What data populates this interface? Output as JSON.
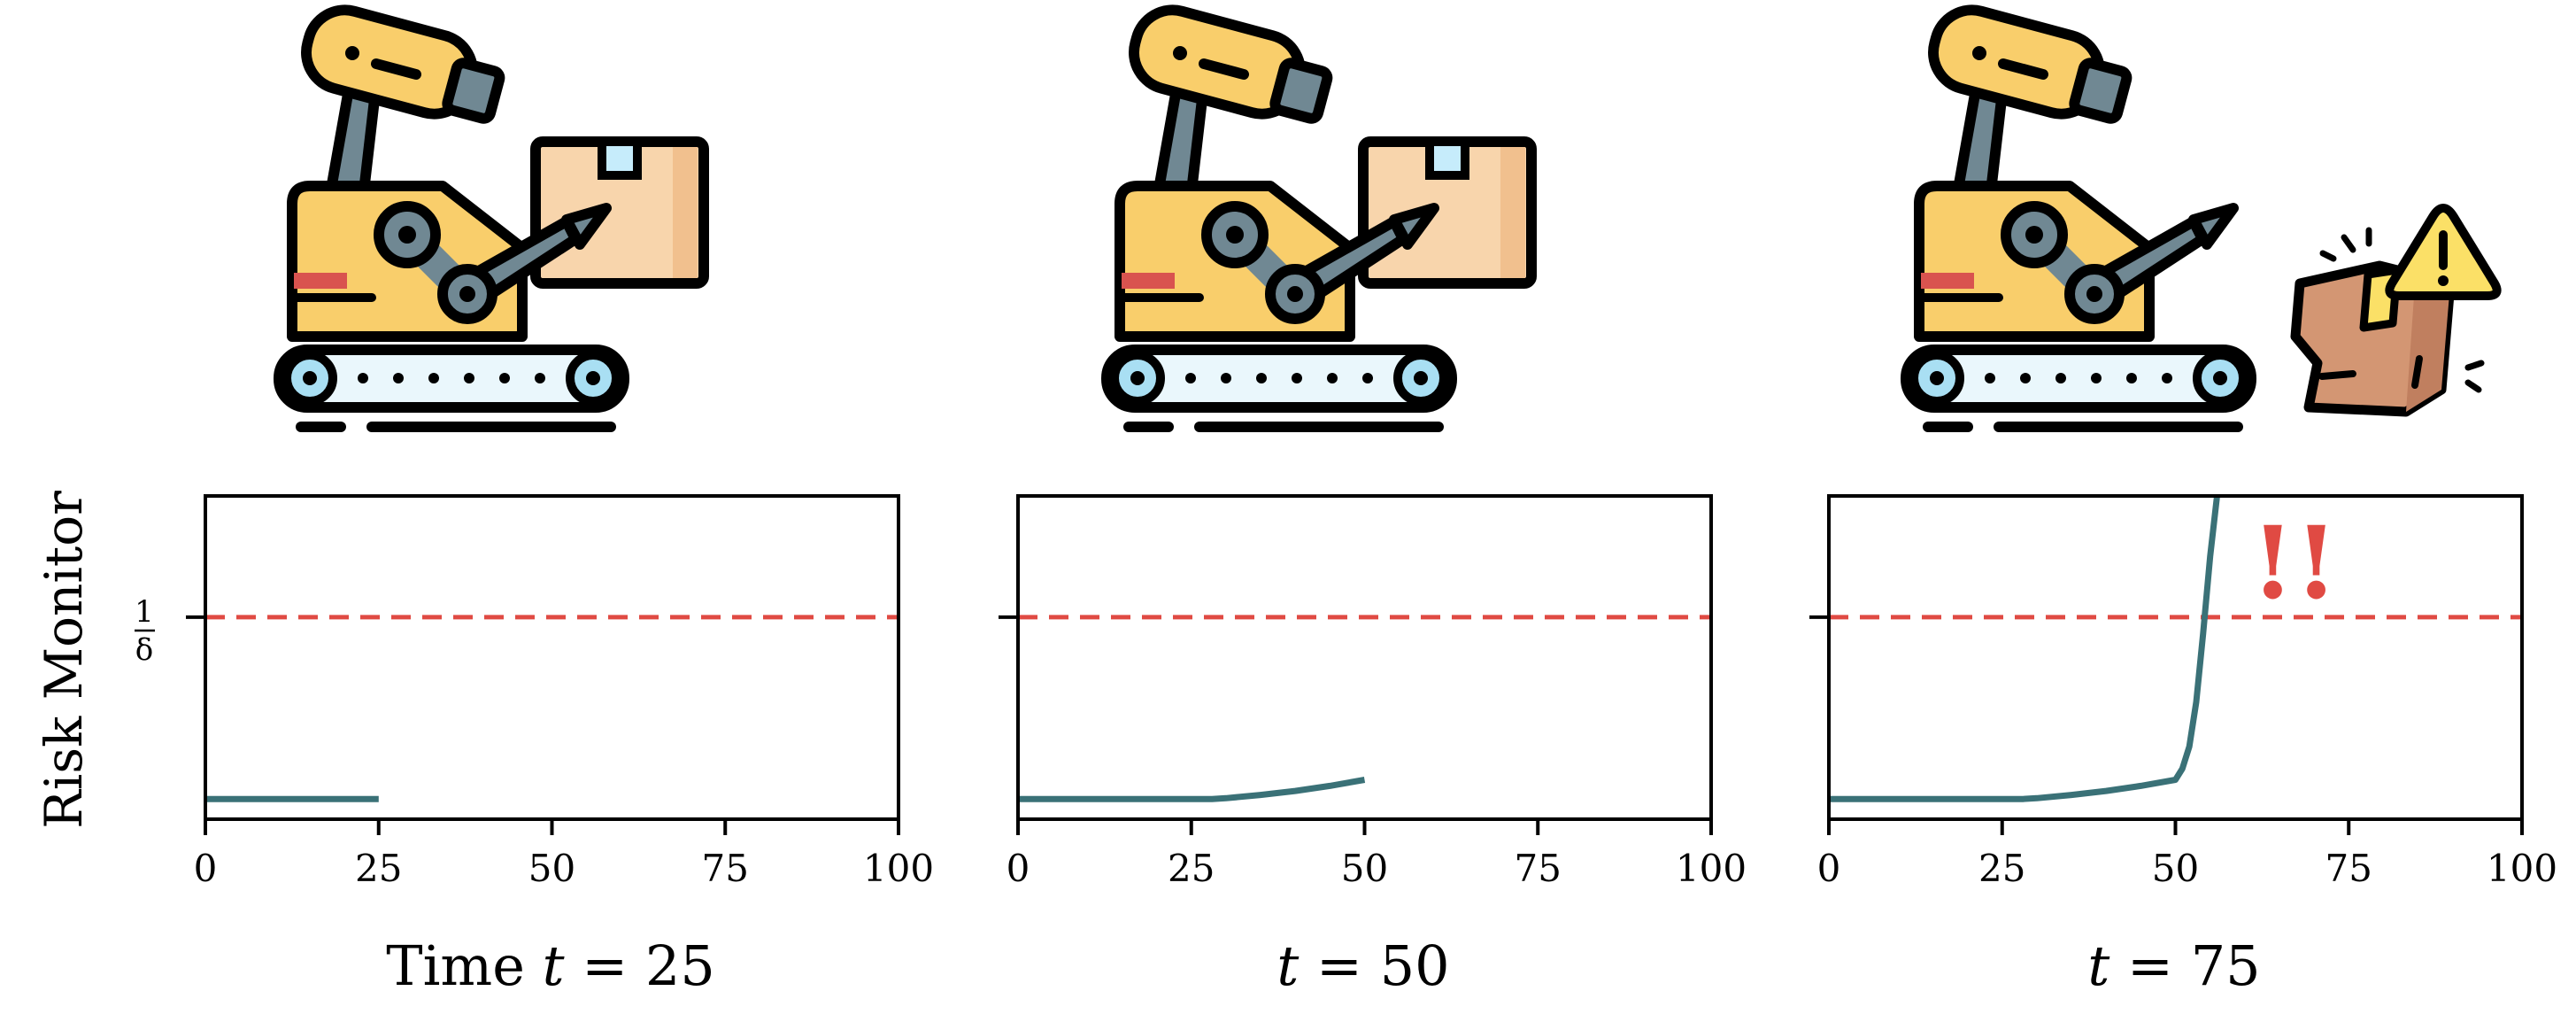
{
  "colors": {
    "risk_line": "#3a7177",
    "threshold": "#e04a43",
    "axis": "#000000",
    "robot_body": "#f9ce6b",
    "robot_arm": "#708893",
    "box": "#f8d5ac",
    "broken_box": "#d39673",
    "warning": "#fbe067",
    "wheel": "#a9dff3"
  },
  "icons": [
    "robot-with-box-icon",
    "robot-with-box-icon",
    "robot-with-broken-box-warning-icon"
  ],
  "ylabel": "Risk Monitor",
  "threshold_label": {
    "num": "1",
    "den": "δ"
  },
  "alert_text": "!!",
  "x_ticks": [
    "0",
    "25",
    "50",
    "75",
    "100"
  ],
  "titles": [
    {
      "prefix": "Time ",
      "var": "t",
      "rest": " = 25"
    },
    {
      "prefix": "",
      "var": "t",
      "rest": " = 50"
    },
    {
      "prefix": "",
      "var": "t",
      "rest": " = 75"
    }
  ],
  "chart_data": [
    {
      "type": "line",
      "xlim": [
        0,
        100
      ],
      "ylim": [
        0,
        1.6
      ],
      "threshold": 1.0,
      "x": [
        0,
        5,
        10,
        15,
        20,
        25
      ],
      "y": [
        0.1,
        0.1,
        0.1,
        0.1,
        0.1,
        0.1
      ]
    },
    {
      "type": "line",
      "xlim": [
        0,
        100
      ],
      "ylim": [
        0,
        1.6
      ],
      "threshold": 1.0,
      "x": [
        0,
        10,
        20,
        25,
        28,
        30,
        35,
        40,
        45,
        50
      ],
      "y": [
        0.1,
        0.1,
        0.1,
        0.1,
        0.1,
        0.104,
        0.12,
        0.14,
        0.165,
        0.195
      ]
    },
    {
      "type": "line",
      "xlim": [
        0,
        100
      ],
      "ylim": [
        0,
        1.6
      ],
      "threshold": 1.0,
      "x": [
        0,
        10,
        20,
        25,
        28,
        30,
        35,
        40,
        45,
        50,
        51,
        52,
        53,
        54,
        55,
        56
      ],
      "y": [
        0.1,
        0.1,
        0.1,
        0.1,
        0.1,
        0.104,
        0.12,
        0.14,
        0.165,
        0.195,
        0.25,
        0.36,
        0.58,
        0.92,
        1.3,
        1.6
      ]
    }
  ]
}
